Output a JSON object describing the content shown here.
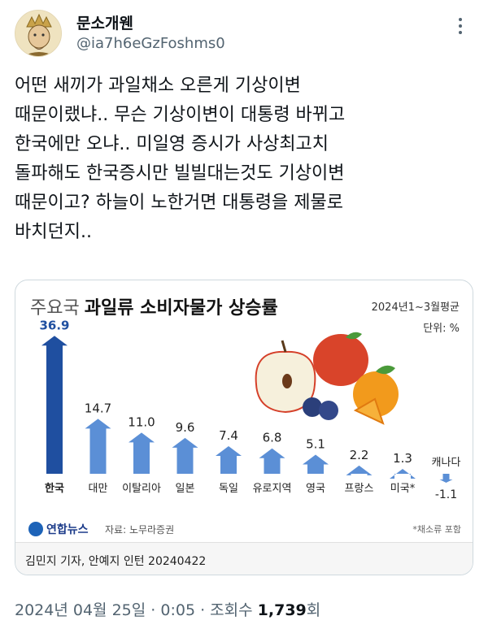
{
  "user": {
    "display_name": "문소개웬",
    "handle": "@ia7h6eGzFoshms0"
  },
  "tweet": {
    "text": "어떤 새끼가 과일채소 오른게 기상이변\n때문이랬냐.. 무슨 기상이변이 대통령 바뀌고\n한국에만 오냐.. 미일영 증시가 사상최고치\n돌파해도 한국증시만 빌빌대는것도 기상이변\n때문이고? 하늘이 노한거면 대통령을 제물로\n바치던지.."
  },
  "card": {
    "title_prefix": "주요국",
    "title_main": "과일류 소비자물가 상승률",
    "period": "2024년1~3월평균",
    "unit": "단위: %",
    "logo": "연합뉴스",
    "source": "자료: 노무라증권",
    "footnote": "*채소류 포함",
    "byline": "김민지 기자, 안예지 인턴  20240422"
  },
  "chart_data": {
    "type": "bar",
    "categories": [
      "한국",
      "대만",
      "이탈리아",
      "일본",
      "독일",
      "유로지역",
      "영국",
      "프랑스",
      "미국*",
      "캐나다"
    ],
    "values": [
      36.9,
      14.7,
      11.0,
      9.6,
      7.4,
      6.8,
      5.1,
      2.2,
      1.3,
      -1.1
    ],
    "value_labels": [
      "36.9",
      "14.7",
      "11.0",
      "9.6",
      "7.4",
      "6.8",
      "5.1",
      "2.2",
      "1.3",
      "-1.1"
    ],
    "colors": {
      "highlight": "#1f4fa0",
      "bar": "#5b8fd6",
      "negative": "#5b8fd6"
    }
  },
  "meta": {
    "date": "2024년 04월 25일",
    "time": "0:05",
    "views_label": "조회수",
    "views": "1,739",
    "views_suffix": "회"
  },
  "icons": {
    "more": "more-vertical-icon",
    "avatar": "avatar-image"
  }
}
